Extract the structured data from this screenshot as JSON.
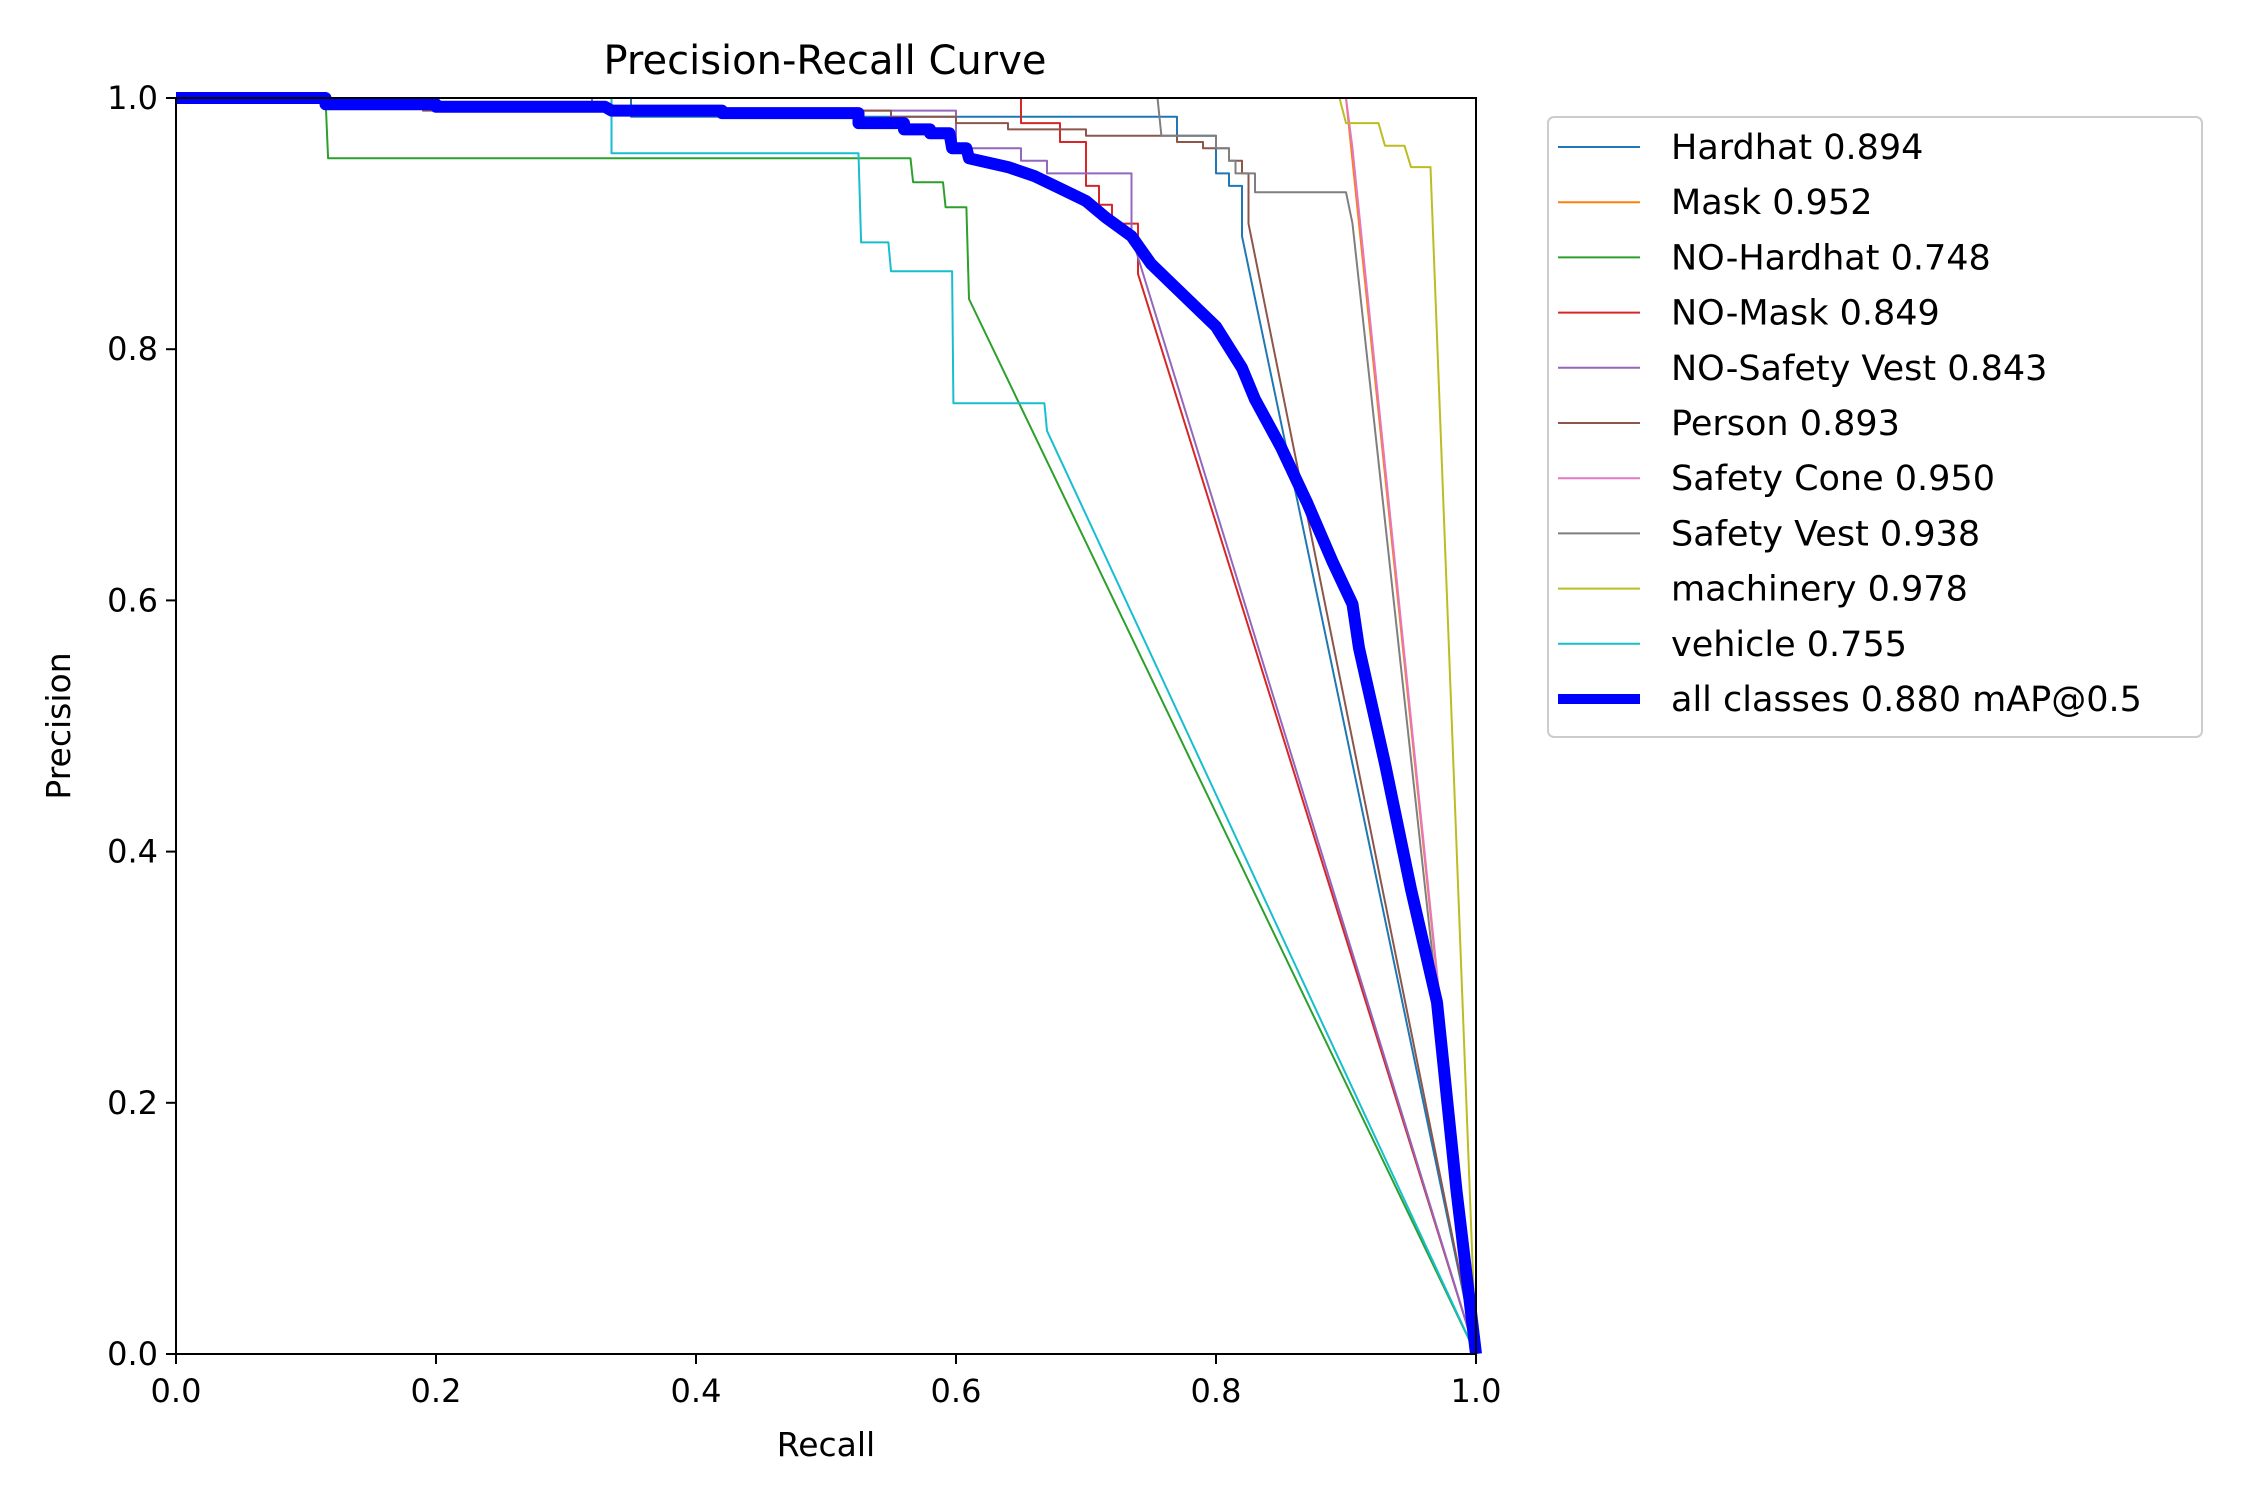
{
  "chart_data": {
    "type": "line",
    "title": "Precision-Recall Curve",
    "xlabel": "Recall",
    "ylabel": "Precision",
    "xlim": [
      0,
      1
    ],
    "ylim": [
      0,
      1
    ],
    "grid": false,
    "legend_position": "outside-top-right",
    "x_ticks": [
      "0.0",
      "0.2",
      "0.4",
      "0.6",
      "0.8",
      "1.0"
    ],
    "y_ticks": [
      "0.0",
      "0.2",
      "0.4",
      "0.6",
      "0.8",
      "1.0"
    ],
    "series": [
      {
        "name": "Hardhat 0.894",
        "color": "#1f77b4",
        "width": 1,
        "points": [
          [
            0,
            1
          ],
          [
            0.35,
            1
          ],
          [
            0.35,
            0.985
          ],
          [
            0.77,
            0.985
          ],
          [
            0.77,
            0.97
          ],
          [
            0.8,
            0.97
          ],
          [
            0.8,
            0.94
          ],
          [
            0.81,
            0.94
          ],
          [
            0.81,
            0.93
          ],
          [
            0.82,
            0.93
          ],
          [
            0.82,
            0.89
          ],
          [
            1,
            0
          ]
        ]
      },
      {
        "name": "Mask 0.952",
        "color": "#ff7f0e",
        "width": 1,
        "points": [
          [
            0,
            1
          ],
          [
            0.9,
            1
          ],
          [
            0.91,
            0.9
          ],
          [
            1,
            0
          ]
        ]
      },
      {
        "name": "NO-Hardhat 0.748",
        "color": "#2ca02c",
        "width": 1,
        "points": [
          [
            0,
            1
          ],
          [
            0.115,
            1
          ],
          [
            0.117,
            0.952
          ],
          [
            0.565,
            0.952
          ],
          [
            0.567,
            0.933
          ],
          [
            0.59,
            0.933
          ],
          [
            0.592,
            0.913
          ],
          [
            0.608,
            0.913
          ],
          [
            0.61,
            0.84
          ],
          [
            1,
            0
          ]
        ]
      },
      {
        "name": "NO-Mask 0.849",
        "color": "#d62728",
        "width": 1,
        "points": [
          [
            0,
            1
          ],
          [
            0.65,
            1
          ],
          [
            0.65,
            0.98
          ],
          [
            0.68,
            0.98
          ],
          [
            0.68,
            0.965
          ],
          [
            0.7,
            0.965
          ],
          [
            0.7,
            0.93
          ],
          [
            0.71,
            0.93
          ],
          [
            0.71,
            0.915
          ],
          [
            0.72,
            0.915
          ],
          [
            0.72,
            0.9
          ],
          [
            0.74,
            0.9
          ],
          [
            0.74,
            0.86
          ],
          [
            1,
            0
          ]
        ]
      },
      {
        "name": "NO-Safety Vest 0.843",
        "color": "#9467bd",
        "width": 1,
        "points": [
          [
            0,
            1
          ],
          [
            0.32,
            1
          ],
          [
            0.32,
            0.99
          ],
          [
            0.6,
            0.99
          ],
          [
            0.6,
            0.96
          ],
          [
            0.65,
            0.96
          ],
          [
            0.65,
            0.95
          ],
          [
            0.67,
            0.95
          ],
          [
            0.67,
            0.94
          ],
          [
            0.735,
            0.94
          ],
          [
            0.735,
            0.89
          ],
          [
            1,
            0
          ]
        ]
      },
      {
        "name": "Person 0.893",
        "color": "#8c564b",
        "width": 1,
        "points": [
          [
            0,
            1
          ],
          [
            0.19,
            1
          ],
          [
            0.19,
            0.99
          ],
          [
            0.55,
            0.99
          ],
          [
            0.55,
            0.985
          ],
          [
            0.6,
            0.985
          ],
          [
            0.6,
            0.98
          ],
          [
            0.64,
            0.98
          ],
          [
            0.64,
            0.975
          ],
          [
            0.7,
            0.975
          ],
          [
            0.7,
            0.97
          ],
          [
            0.77,
            0.97
          ],
          [
            0.77,
            0.965
          ],
          [
            0.79,
            0.965
          ],
          [
            0.79,
            0.96
          ],
          [
            0.81,
            0.96
          ],
          [
            0.81,
            0.95
          ],
          [
            0.82,
            0.95
          ],
          [
            0.82,
            0.94
          ],
          [
            0.825,
            0.94
          ],
          [
            0.825,
            0.9
          ],
          [
            1,
            0
          ]
        ]
      },
      {
        "name": "Safety Cone 0.950",
        "color": "#e377c2",
        "width": 1,
        "points": [
          [
            0,
            1
          ],
          [
            0.9,
            1
          ],
          [
            0.905,
            0.96
          ],
          [
            1,
            0
          ]
        ]
      },
      {
        "name": "Safety Vest 0.938",
        "color": "#7f7f7f",
        "width": 1,
        "points": [
          [
            0,
            1
          ],
          [
            0.755,
            1
          ],
          [
            0.758,
            0.97
          ],
          [
            0.8,
            0.97
          ],
          [
            0.8,
            0.96
          ],
          [
            0.81,
            0.96
          ],
          [
            0.81,
            0.95
          ],
          [
            0.815,
            0.95
          ],
          [
            0.815,
            0.94
          ],
          [
            0.83,
            0.94
          ],
          [
            0.83,
            0.925
          ],
          [
            0.9,
            0.925
          ],
          [
            0.905,
            0.9
          ],
          [
            1,
            0
          ]
        ]
      },
      {
        "name": "machinery 0.978",
        "color": "#bcbd22",
        "width": 1,
        "points": [
          [
            0,
            1
          ],
          [
            0.895,
            1
          ],
          [
            0.9,
            0.98
          ],
          [
            0.925,
            0.98
          ],
          [
            0.93,
            0.962
          ],
          [
            0.945,
            0.962
          ],
          [
            0.95,
            0.945
          ],
          [
            0.965,
            0.945
          ],
          [
            1,
            0
          ]
        ]
      },
      {
        "name": "vehicle 0.755",
        "color": "#17becf",
        "width": 1,
        "points": [
          [
            0,
            1
          ],
          [
            0.335,
            1
          ],
          [
            0.335,
            0.956
          ],
          [
            0.525,
            0.956
          ],
          [
            0.527,
            0.885
          ],
          [
            0.548,
            0.885
          ],
          [
            0.55,
            0.862
          ],
          [
            0.597,
            0.862
          ],
          [
            0.598,
            0.757
          ],
          [
            0.668,
            0.757
          ],
          [
            0.67,
            0.735
          ],
          [
            1,
            0
          ]
        ]
      },
      {
        "name": "all classes 0.880 mAP@0.5",
        "color": "#0000ff",
        "width": 6,
        "points": [
          [
            0,
            1
          ],
          [
            0.115,
            1
          ],
          [
            0.115,
            0.995
          ],
          [
            0.2,
            0.995
          ],
          [
            0.2,
            0.993
          ],
          [
            0.33,
            0.993
          ],
          [
            0.335,
            0.99
          ],
          [
            0.42,
            0.99
          ],
          [
            0.42,
            0.988
          ],
          [
            0.525,
            0.988
          ],
          [
            0.525,
            0.98
          ],
          [
            0.56,
            0.98
          ],
          [
            0.56,
            0.975
          ],
          [
            0.58,
            0.975
          ],
          [
            0.58,
            0.972
          ],
          [
            0.595,
            0.972
          ],
          [
            0.597,
            0.96
          ],
          [
            0.608,
            0.96
          ],
          [
            0.61,
            0.952
          ],
          [
            0.64,
            0.945
          ],
          [
            0.66,
            0.938
          ],
          [
            0.68,
            0.928
          ],
          [
            0.7,
            0.918
          ],
          [
            0.715,
            0.905
          ],
          [
            0.735,
            0.89
          ],
          [
            0.75,
            0.868
          ],
          [
            0.77,
            0.848
          ],
          [
            0.8,
            0.818
          ],
          [
            0.82,
            0.785
          ],
          [
            0.83,
            0.76
          ],
          [
            0.85,
            0.722
          ],
          [
            0.87,
            0.678
          ],
          [
            0.89,
            0.63
          ],
          [
            0.905,
            0.597
          ],
          [
            0.91,
            0.562
          ],
          [
            0.93,
            0.47
          ],
          [
            0.95,
            0.37
          ],
          [
            0.97,
            0.28
          ],
          [
            0.985,
            0.13
          ],
          [
            1,
            0
          ]
        ]
      }
    ]
  }
}
